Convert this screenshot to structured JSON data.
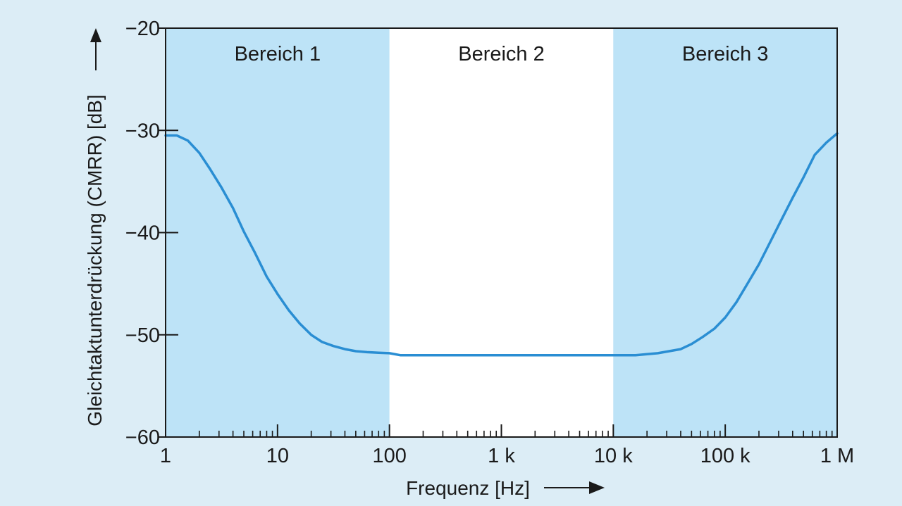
{
  "chart_data": {
    "type": "line",
    "title": "",
    "xlabel": "Frequenz [Hz]",
    "ylabel": "Gleichtaktunterdrückung (CMRR) [dB]",
    "x_scale": "log",
    "xlim": [
      1,
      1000000
    ],
    "ylim": [
      -60,
      -20
    ],
    "x_ticks": [
      {
        "value": 1,
        "label": "1"
      },
      {
        "value": 10,
        "label": "10"
      },
      {
        "value": 100,
        "label": "100"
      },
      {
        "value": 1000,
        "label": "1 k"
      },
      {
        "value": 10000,
        "label": "10 k"
      },
      {
        "value": 100000,
        "label": "100 k"
      },
      {
        "value": 1000000,
        "label": "1 M"
      }
    ],
    "y_ticks": [
      {
        "value": -20,
        "label": "−20"
      },
      {
        "value": -30,
        "label": "−30"
      },
      {
        "value": -40,
        "label": "−40"
      },
      {
        "value": -50,
        "label": "−50"
      },
      {
        "value": -60,
        "label": "−60"
      }
    ],
    "regions": [
      {
        "label": "Bereich 1",
        "x_start": 1,
        "x_end": 100,
        "color": "#bde3f7"
      },
      {
        "label": "Bereich 2",
        "x_start": 100,
        "x_end": 10000,
        "color": "#ffffff"
      },
      {
        "label": "Bereich 3",
        "x_start": 10000,
        "x_end": 1000000,
        "color": "#bde3f7"
      }
    ],
    "grid": false,
    "series": [
      {
        "color": "#2a8ed3",
        "x": [
          1,
          1.26,
          1.58,
          2,
          2.5,
          3.16,
          4,
          5,
          6.3,
          8,
          10,
          12.6,
          15.8,
          20,
          25,
          31.6,
          40,
          50,
          63,
          80,
          100,
          126,
          158,
          200,
          316,
          1000,
          3160,
          10000,
          15800,
          20000,
          25000,
          31600,
          40000,
          50000,
          63000,
          80000,
          100000,
          126000,
          158000,
          200000,
          250000,
          316000,
          400000,
          500000,
          630000,
          800000,
          1000000
        ],
        "y": [
          -30.5,
          -30.5,
          -31.0,
          -32.2,
          -33.8,
          -35.6,
          -37.6,
          -39.9,
          -42.0,
          -44.3,
          -46.0,
          -47.6,
          -48.9,
          -50.0,
          -50.7,
          -51.1,
          -51.4,
          -51.6,
          -51.7,
          -51.75,
          -51.8,
          -52.0,
          -52.0,
          -52.0,
          -52.0,
          -52.0,
          -52.0,
          -52.0,
          -52.0,
          -51.9,
          -51.8,
          -51.6,
          -51.4,
          -50.9,
          -50.2,
          -49.4,
          -48.3,
          -46.8,
          -45.0,
          -43.1,
          -41.0,
          -38.8,
          -36.6,
          -34.6,
          -32.4,
          -31.2,
          -30.3
        ]
      }
    ]
  }
}
